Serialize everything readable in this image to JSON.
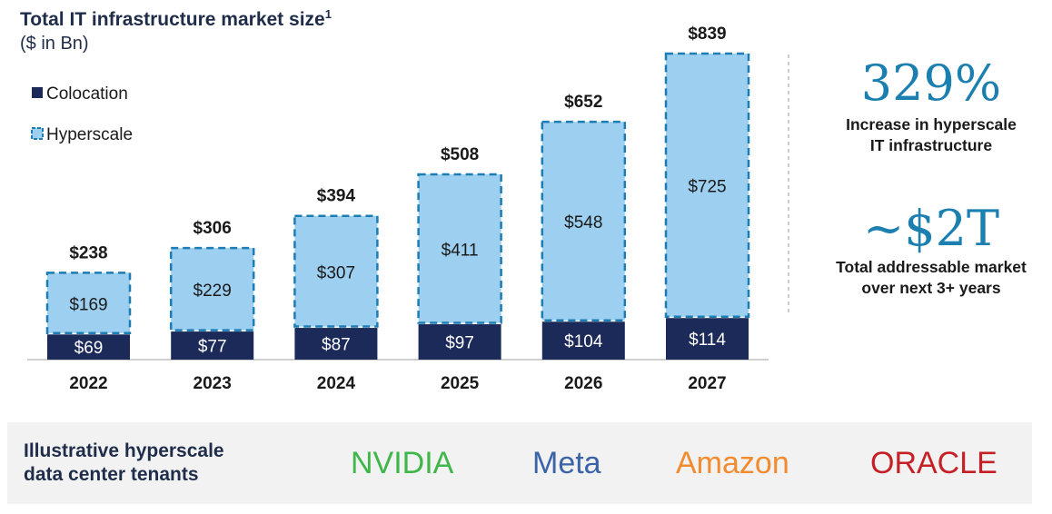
{
  "title": "Total IT infrastructure market size",
  "title_sup": "1",
  "unit": "($ in Bn)",
  "colors": {
    "colocation": "#1b2a58",
    "hyperscale": "#9dcff1",
    "dash": "#1c7cb4",
    "accent": "#1b7fb0"
  },
  "chart_data": {
    "type": "bar",
    "stacked": true,
    "categories": [
      "2022",
      "2023",
      "2024",
      "2025",
      "2026",
      "2027"
    ],
    "series": [
      {
        "name": "Colocation",
        "values": [
          69,
          77,
          87,
          97,
          104,
          114
        ],
        "labels": [
          "$69",
          "$77",
          "$87",
          "$97",
          "$104",
          "$114"
        ]
      },
      {
        "name": "Hyperscale",
        "values": [
          169,
          229,
          307,
          411,
          548,
          725
        ],
        "labels": [
          "$169",
          "$229",
          "$307",
          "$411",
          "$548",
          "$725"
        ]
      }
    ],
    "totals": [
      238,
      306,
      394,
      508,
      652,
      839
    ],
    "total_labels": [
      "$238",
      "$306",
      "$394",
      "$508",
      "$652",
      "$839"
    ],
    "legend_position": "top-left",
    "ylim": [
      0,
      839
    ]
  },
  "stats": [
    {
      "value": "329%",
      "label_line1": "Increase in hyperscale",
      "label_line2": "IT infrastructure"
    },
    {
      "value": "~$2T",
      "label_line1": "Total addressable market",
      "label_line2": "over next 3+ years"
    }
  ],
  "tenants": {
    "heading_line1": "Illustrative hyperscale",
    "heading_line2": "data center tenants",
    "items": [
      {
        "name": "NVIDIA",
        "color": "#3eb649"
      },
      {
        "name": "Meta",
        "color": "#3a63a8"
      },
      {
        "name": "Amazon",
        "color": "#f28a2e"
      },
      {
        "name": "ORACLE",
        "color": "#c62026"
      }
    ]
  }
}
